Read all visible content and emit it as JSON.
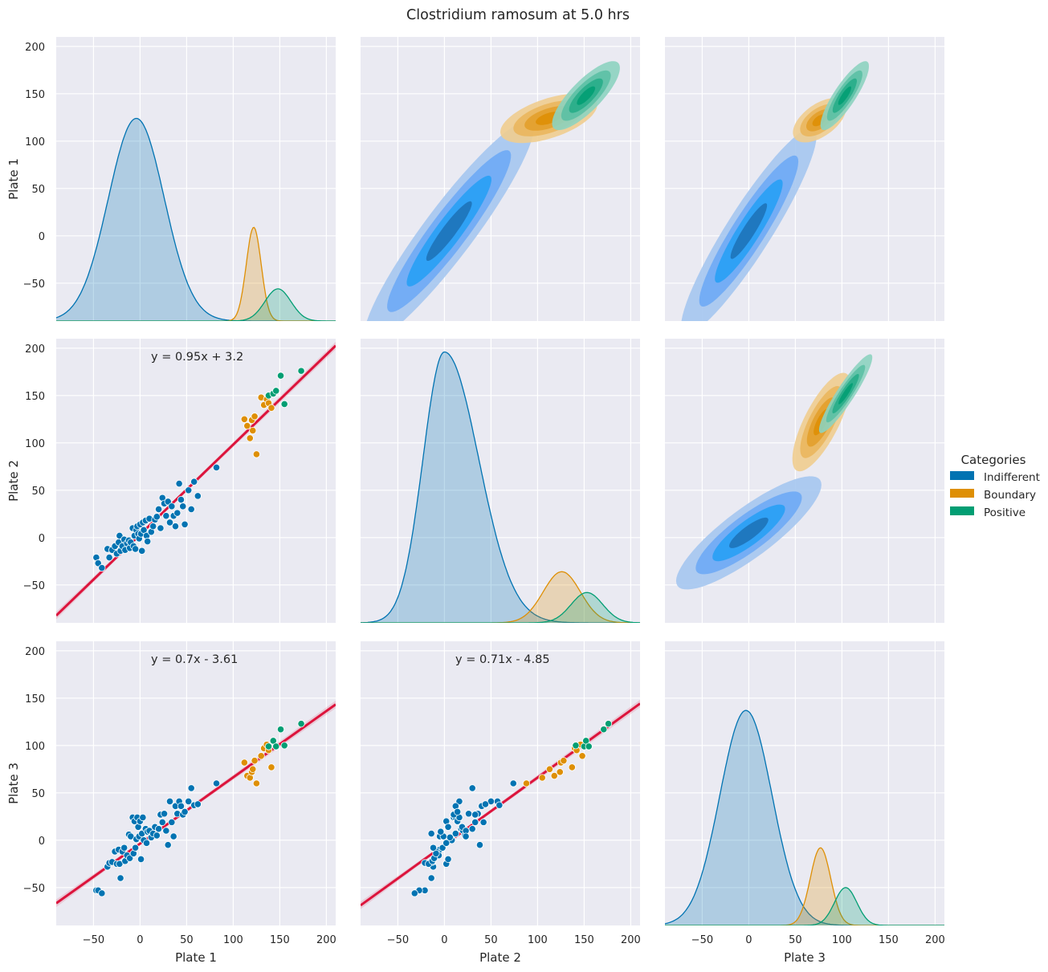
{
  "title": "Clostridium ramosum at 5.0 hrs",
  "colors": {
    "Indifferent": "#0173b2",
    "Boundary": "#de8f05",
    "Positive": "#029e73",
    "regression": "#dc143c",
    "panel_bg": "#eaeaf2",
    "grid": "#ffffff"
  },
  "legend": {
    "title": "Categories",
    "placement": "center-right",
    "items": [
      {
        "label": "Indifferent",
        "color": "#0173b2"
      },
      {
        "label": "Boundary",
        "color": "#de8f05"
      },
      {
        "label": "Positive",
        "color": "#029e73"
      }
    ]
  },
  "chart_data": {
    "type": "scatter",
    "subtype": "pairplot",
    "variables": [
      "Plate 1",
      "Plate 2",
      "Plate 3"
    ],
    "axis_labels": {
      "x": [
        "Plate 1",
        "Plate 2",
        "Plate 3"
      ],
      "y": [
        "Plate 1",
        "Plate 2",
        "Plate 3"
      ]
    },
    "lim": [
      -90,
      210
    ],
    "ticks": [
      -50,
      0,
      50,
      100,
      150,
      200
    ],
    "x_tick_labels": [
      "−50",
      "0",
      "50",
      "100",
      "150",
      "200"
    ],
    "y_tick_labels": [
      "−50",
      "0",
      "50",
      "100",
      "150",
      "200"
    ],
    "grid": true,
    "diagonal": {
      "type": "kde",
      "curves": {
        "Plate 1": [
          {
            "category": "Indifferent",
            "mean": -4,
            "sd": 30,
            "peak": 124
          },
          {
            "category": "Boundary",
            "mean": 122,
            "sd": 8,
            "peak": 9
          },
          {
            "category": "Positive",
            "mean": 148,
            "sd": 14,
            "peak": -56
          }
        ],
        "Plate 2": [
          {
            "category": "Indifferent",
            "mean": 0,
            "sd": 23,
            "peak": 196,
            "skew": 1.6
          },
          {
            "category": "Boundary",
            "mean": 126,
            "sd": 20,
            "peak": -36
          },
          {
            "category": "Positive",
            "mean": 153,
            "sd": 17,
            "peak": -58
          }
        ],
        "Plate 3": [
          {
            "category": "Indifferent",
            "mean": -3,
            "sd": 28,
            "peak": 137
          },
          {
            "category": "Boundary",
            "mean": 77,
            "sd": 11,
            "peak": -8
          },
          {
            "category": "Positive",
            "mean": 104,
            "sd": 12,
            "peak": -50
          }
        ]
      }
    },
    "regressions": [
      {
        "x": "Plate 1",
        "y": "Plate 2",
        "slope": 0.95,
        "intercept": 3.2,
        "label": "y = 0.95x + 3.2"
      },
      {
        "x": "Plate 1",
        "y": "Plate 3",
        "slope": 0.7,
        "intercept": -3.61,
        "label": "y = 0.7x - 3.61"
      },
      {
        "x": "Plate 2",
        "y": "Plate 3",
        "slope": 0.71,
        "intercept": -4.85,
        "label": "y = 0.71x - 4.85"
      }
    ],
    "points": [
      {
        "p1": -47,
        "p2": -21,
        "p3": -53,
        "cat": "Indifferent"
      },
      {
        "p1": -45,
        "p2": -27,
        "p3": -53,
        "cat": "Indifferent"
      },
      {
        "p1": -41,
        "p2": -32,
        "p3": -56,
        "cat": "Indifferent"
      },
      {
        "p1": -35,
        "p2": -12,
        "p3": -28,
        "cat": "Indifferent"
      },
      {
        "p1": -33,
        "p2": -21,
        "p3": -24,
        "cat": "Indifferent"
      },
      {
        "p1": -30,
        "p2": -13,
        "p3": -23,
        "cat": "Indifferent"
      },
      {
        "p1": -27,
        "p2": -9,
        "p3": -12,
        "cat": "Indifferent"
      },
      {
        "p1": -25,
        "p2": -17,
        "p3": -25,
        "cat": "Indifferent"
      },
      {
        "p1": -23,
        "p2": -5,
        "p3": -10,
        "cat": "Indifferent"
      },
      {
        "p1": -22,
        "p2": 2,
        "p3": -25,
        "cat": "Indifferent"
      },
      {
        "p1": -21,
        "p2": -14,
        "p3": -40,
        "cat": "Indifferent"
      },
      {
        "p1": -19,
        "p2": -9,
        "p3": -12,
        "cat": "Indifferent"
      },
      {
        "p1": -17,
        "p2": -2,
        "p3": -8,
        "cat": "Indifferent"
      },
      {
        "p1": -16,
        "p2": -13,
        "p3": -22,
        "cat": "Indifferent"
      },
      {
        "p1": -14,
        "p2": -6,
        "p3": -16,
        "cat": "Indifferent"
      },
      {
        "p1": -12,
        "p2": -3,
        "p3": 6,
        "cat": "Indifferent"
      },
      {
        "p1": -11,
        "p2": -11,
        "p3": -19,
        "cat": "Indifferent"
      },
      {
        "p1": -10,
        "p2": -5,
        "p3": 4,
        "cat": "Indifferent"
      },
      {
        "p1": -8,
        "p2": 10,
        "p3": 24,
        "cat": "Indifferent"
      },
      {
        "p1": -7,
        "p2": -9,
        "p3": -14,
        "cat": "Indifferent"
      },
      {
        "p1": -6,
        "p2": 2,
        "p3": 20,
        "cat": "Indifferent"
      },
      {
        "p1": -5,
        "p2": -12,
        "p3": -8,
        "cat": "Indifferent"
      },
      {
        "p1": -4,
        "p2": 8,
        "p3": 1,
        "cat": "Indifferent"
      },
      {
        "p1": -3,
        "p2": 12,
        "p3": 24,
        "cat": "Indifferent"
      },
      {
        "p1": -2,
        "p2": 4,
        "p3": 14,
        "cat": "Indifferent"
      },
      {
        "p1": -1,
        "p2": -1,
        "p3": 4,
        "cat": "Indifferent"
      },
      {
        "p1": 0,
        "p2": 14,
        "p3": 20,
        "cat": "Indifferent"
      },
      {
        "p1": 1,
        "p2": 4,
        "p3": -20,
        "cat": "Indifferent"
      },
      {
        "p1": 2,
        "p2": -14,
        "p3": 7,
        "cat": "Indifferent"
      },
      {
        "p1": 3,
        "p2": 16,
        "p3": 24,
        "cat": "Indifferent"
      },
      {
        "p1": 4,
        "p2": 8,
        "p3": 0,
        "cat": "Indifferent"
      },
      {
        "p1": 6,
        "p2": 18,
        "p3": 12,
        "cat": "Indifferent"
      },
      {
        "p1": 7,
        "p2": 2,
        "p3": -3,
        "cat": "Indifferent"
      },
      {
        "p1": 8,
        "p2": -4,
        "p3": 9,
        "cat": "Indifferent"
      },
      {
        "p1": 10,
        "p2": 20,
        "p3": 10,
        "cat": "Indifferent"
      },
      {
        "p1": 12,
        "p2": 6,
        "p3": 3,
        "cat": "Indifferent"
      },
      {
        "p1": 14,
        "p2": 12,
        "p3": 7,
        "cat": "Indifferent"
      },
      {
        "p1": 16,
        "p2": 19,
        "p3": 14,
        "cat": "Indifferent"
      },
      {
        "p1": 18,
        "p2": 22,
        "p3": 5,
        "cat": "Indifferent"
      },
      {
        "p1": 20,
        "p2": 30,
        "p3": 12,
        "cat": "Indifferent"
      },
      {
        "p1": 22,
        "p2": 10,
        "p3": 27,
        "cat": "Indifferent"
      },
      {
        "p1": 24,
        "p2": 42,
        "p3": 19,
        "cat": "Indifferent"
      },
      {
        "p1": 26,
        "p2": 36,
        "p3": 28,
        "cat": "Indifferent"
      },
      {
        "p1": 28,
        "p2": 23,
        "p3": 10,
        "cat": "Indifferent"
      },
      {
        "p1": 30,
        "p2": 38,
        "p3": -5,
        "cat": "Indifferent"
      },
      {
        "p1": 32,
        "p2": 16,
        "p3": 41,
        "cat": "Indifferent"
      },
      {
        "p1": 34,
        "p2": 33,
        "p3": 19,
        "cat": "Indifferent"
      },
      {
        "p1": 36,
        "p2": 23,
        "p3": 4,
        "cat": "Indifferent"
      },
      {
        "p1": 38,
        "p2": 12,
        "p3": 36,
        "cat": "Indifferent"
      },
      {
        "p1": 40,
        "p2": 26,
        "p3": 28,
        "cat": "Indifferent"
      },
      {
        "p1": 42,
        "p2": 57,
        "p3": 41,
        "cat": "Indifferent"
      },
      {
        "p1": 44,
        "p2": 40,
        "p3": 36,
        "cat": "Indifferent"
      },
      {
        "p1": 46,
        "p2": 33,
        "p3": 27,
        "cat": "Indifferent"
      },
      {
        "p1": 48,
        "p2": 14,
        "p3": 30,
        "cat": "Indifferent"
      },
      {
        "p1": 52,
        "p2": 50,
        "p3": 41,
        "cat": "Indifferent"
      },
      {
        "p1": 55,
        "p2": 30,
        "p3": 55,
        "cat": "Indifferent"
      },
      {
        "p1": 58,
        "p2": 59,
        "p3": 37,
        "cat": "Indifferent"
      },
      {
        "p1": 62,
        "p2": 44,
        "p3": 38,
        "cat": "Indifferent"
      },
      {
        "p1": 82,
        "p2": 74,
        "p3": 60,
        "cat": "Indifferent"
      },
      {
        "p1": 112,
        "p2": 125,
        "p3": 82,
        "cat": "Boundary"
      },
      {
        "p1": 115,
        "p2": 118,
        "p3": 68,
        "cat": "Boundary"
      },
      {
        "p1": 118,
        "p2": 105,
        "p3": 66,
        "cat": "Boundary"
      },
      {
        "p1": 120,
        "p2": 124,
        "p3": 72,
        "cat": "Boundary"
      },
      {
        "p1": 121,
        "p2": 113,
        "p3": 75,
        "cat": "Boundary"
      },
      {
        "p1": 123,
        "p2": 128,
        "p3": 84,
        "cat": "Boundary"
      },
      {
        "p1": 125,
        "p2": 88,
        "p3": 60,
        "cat": "Boundary"
      },
      {
        "p1": 130,
        "p2": 148,
        "p3": 89,
        "cat": "Boundary"
      },
      {
        "p1": 133,
        "p2": 140,
        "p3": 97,
        "cat": "Boundary"
      },
      {
        "p1": 136,
        "p2": 146,
        "p3": 101,
        "cat": "Boundary"
      },
      {
        "p1": 138,
        "p2": 142,
        "p3": 95,
        "cat": "Boundary"
      },
      {
        "p1": 141,
        "p2": 137,
        "p3": 77,
        "cat": "Boundary"
      },
      {
        "p1": 138,
        "p2": 150,
        "p3": 99,
        "cat": "Positive"
      },
      {
        "p1": 143,
        "p2": 152,
        "p3": 105,
        "cat": "Positive"
      },
      {
        "p1": 146,
        "p2": 155,
        "p3": 99,
        "cat": "Positive"
      },
      {
        "p1": 151,
        "p2": 171,
        "p3": 117,
        "cat": "Positive"
      },
      {
        "p1": 155,
        "p2": 141,
        "p3": 100,
        "cat": "Positive"
      },
      {
        "p1": 173,
        "p2": 176,
        "p3": 123,
        "cat": "Positive"
      }
    ]
  },
  "kde_blobs": {
    "note_hidden": false,
    "pairs": [
      {
        "x": "Plate 2",
        "y": "Plate 1",
        "blobs": [
          {
            "cat": "Indifferent",
            "cx": 5,
            "cy": 5,
            "sx": 35,
            "sy": 45,
            "rho": 0.93
          },
          {
            "cat": "Boundary",
            "cx": 112,
            "cy": 124,
            "sx": 20,
            "sy": 10,
            "rho": 0.55
          },
          {
            "cat": "Positive",
            "cx": 152,
            "cy": 148,
            "sx": 14,
            "sy": 14,
            "rho": 0.8
          }
        ]
      },
      {
        "x": "Plate 3",
        "y": "Plate 1",
        "blobs": [
          {
            "cat": "Indifferent",
            "cx": 0,
            "cy": 5,
            "sx": 28,
            "sy": 42,
            "rho": 0.92
          },
          {
            "cat": "Boundary",
            "cx": 76,
            "cy": 122,
            "sx": 11,
            "sy": 9,
            "rho": 0.55
          },
          {
            "cat": "Positive",
            "cx": 103,
            "cy": 148,
            "sx": 10,
            "sy": 14,
            "rho": 0.85
          }
        ]
      },
      {
        "x": "Plate 3",
        "y": "Plate 2",
        "blobs": [
          {
            "cat": "Indifferent",
            "cx": 0,
            "cy": 5,
            "sx": 30,
            "sy": 23,
            "rho": 0.85
          },
          {
            "cat": "Boundary",
            "cx": 78,
            "cy": 122,
            "sx": 12,
            "sy": 20,
            "rho": 0.75
          },
          {
            "cat": "Positive",
            "cx": 104,
            "cy": 152,
            "sx": 11,
            "sy": 16,
            "rho": 0.92
          }
        ]
      }
    ]
  }
}
